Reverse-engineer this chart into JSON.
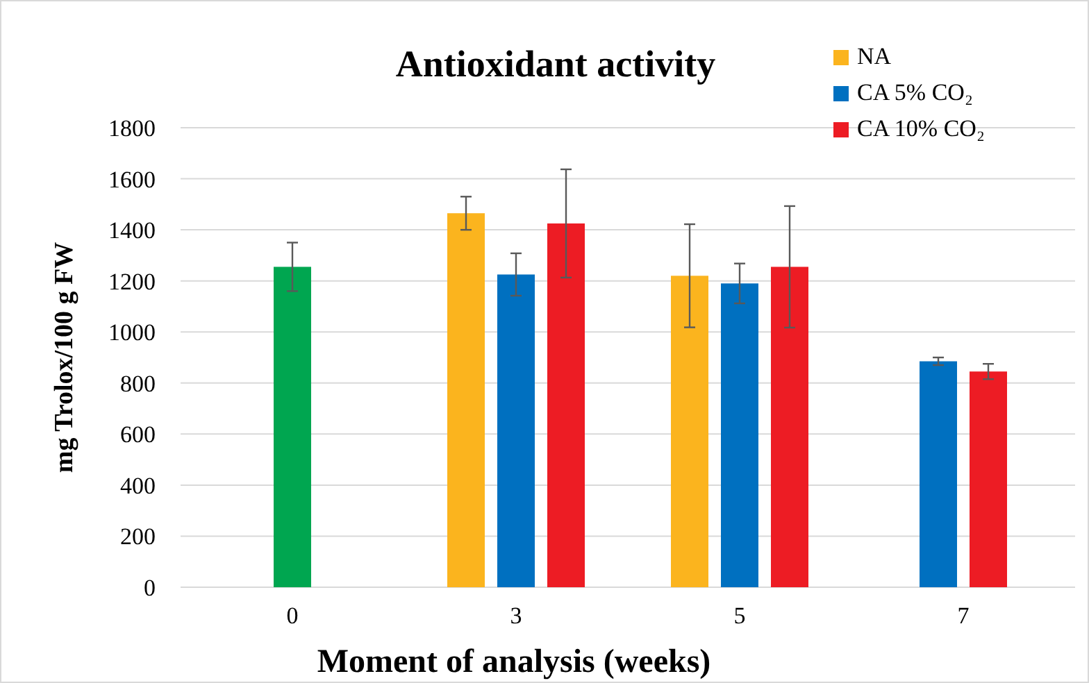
{
  "chart_data": {
    "type": "bar",
    "title": "Antioxidant activity",
    "xlabel": "Moment of analysis (weeks)",
    "ylabel": "mg Trolox/100 g FW",
    "categories": [
      "0",
      "3",
      "5",
      "7"
    ],
    "ylim": [
      0,
      1800
    ],
    "yticks": [
      0,
      200,
      400,
      600,
      800,
      1000,
      1200,
      1400,
      1600,
      1800
    ],
    "grid": "y",
    "legend": "top right",
    "series": [
      {
        "color": "#00a650",
        "values": [
          1255,
          null,
          null,
          null
        ],
        "errors": [
          95,
          null,
          null,
          null
        ]
      },
      {
        "name": "NA",
        "color": "#fbb41e",
        "values": [
          null,
          1465,
          1220,
          null
        ],
        "errors": [
          null,
          65,
          202,
          null
        ]
      },
      {
        "name": "CA 5% CO₂",
        "color": "#0070c0",
        "values": [
          null,
          1225,
          1190,
          885
        ],
        "errors": [
          null,
          83,
          78,
          15
        ]
      },
      {
        "name": "CA 10% CO₂",
        "color": "#ed1c24",
        "values": [
          null,
          1425,
          1255,
          845
        ],
        "errors": [
          null,
          212,
          238,
          30
        ]
      }
    ]
  }
}
